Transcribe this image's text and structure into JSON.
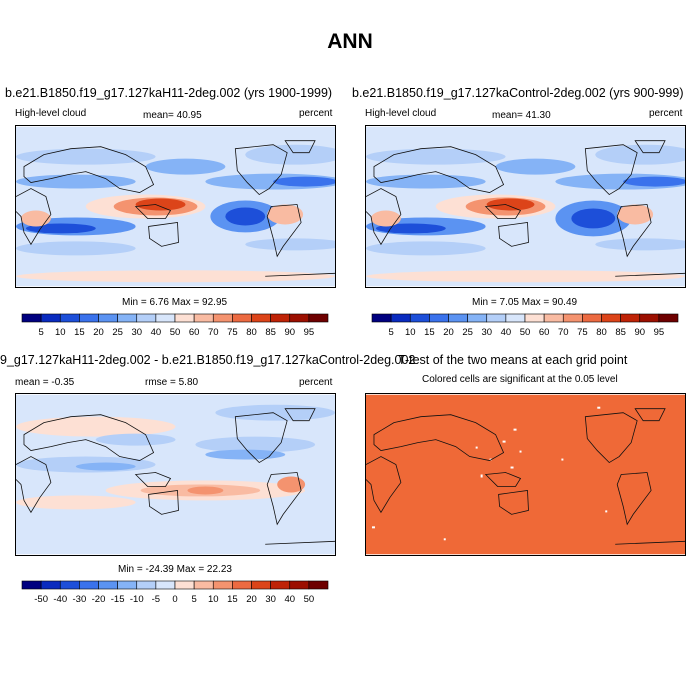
{
  "title": "ANN",
  "panels": [
    {
      "title": "b.e21.B1850.f19_g17.127kaH11-2deg.002 (yrs 1900-1999)",
      "left_label": "High-level cloud",
      "center_label": "mean=  40.95",
      "right_label": "percent",
      "minmax": "Min =  6.76 Max = 92.95"
    },
    {
      "title": "b.e21.B1850.f19_g17.127kaControl-2deg.002 (yrs 900-999)",
      "left_label": "High-level cloud",
      "center_label": "mean=  41.30",
      "right_label": "percent",
      "minmax": "Min =  7.05 Max = 90.49"
    },
    {
      "title": "9_g17.127kaH11-2deg.002 - b.e21.B1850.f19_g17.127kaControl-2deg.002",
      "left_label": "mean =  -0.35",
      "center_label": "rmse =  5.80",
      "right_label": "percent",
      "minmax": "Min = -24.39 Max =  22.23"
    },
    {
      "title": "T-test of the two means at each grid point",
      "subtitle": "Colored cells are significant at the 0.05 level"
    }
  ],
  "colorbars": {
    "abs": {
      "labels": [
        "5",
        "10",
        "15",
        "20",
        "25",
        "30",
        "40",
        "50",
        "60",
        "70",
        "75",
        "80",
        "85",
        "90",
        "95"
      ],
      "colors": [
        "#00007f",
        "#0a2bbf",
        "#1d4fd9",
        "#3a72ec",
        "#5b93f2",
        "#85b3f6",
        "#b4cff8",
        "#d8e6fb",
        "#fde0d4",
        "#f9bba2",
        "#f4936f",
        "#ec6a41",
        "#dc4419",
        "#bf2306",
        "#9c0f00",
        "#6e0000"
      ]
    },
    "diff": {
      "labels": [
        "-50",
        "-40",
        "-30",
        "-20",
        "-15",
        "-10",
        "-5",
        "0",
        "5",
        "10",
        "15",
        "20",
        "30",
        "40",
        "50"
      ],
      "colors": [
        "#00007f",
        "#0a2bbf",
        "#1d4fd9",
        "#3a72ec",
        "#5b93f2",
        "#85b3f6",
        "#b4cff8",
        "#d8e6fb",
        "#fde0d4",
        "#f9bba2",
        "#f4936f",
        "#ec6a41",
        "#dc4419",
        "#bf2306",
        "#9c0f00",
        "#6e0000"
      ]
    }
  },
  "ttest_color": "#ef6937"
}
